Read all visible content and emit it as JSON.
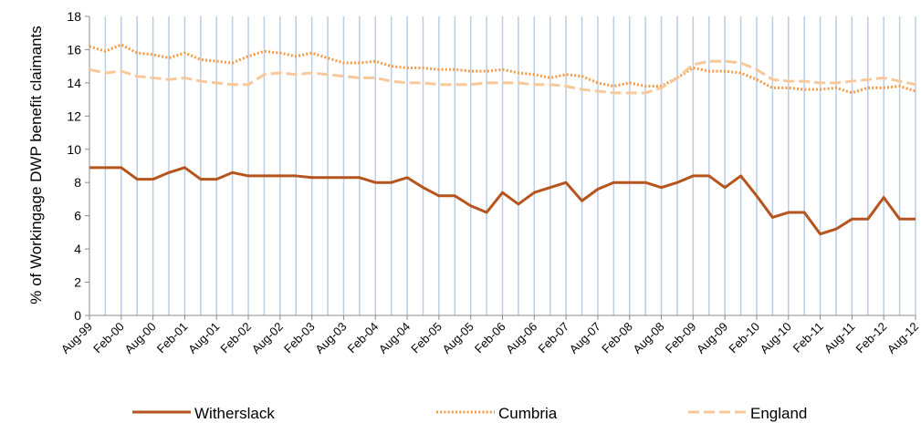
{
  "chart_data": {
    "type": "line",
    "title": "",
    "xlabel": "",
    "ylabel": "% of Workingage DWP benefit claimants",
    "ylim": [
      0,
      18
    ],
    "ytick_values": [
      0,
      2,
      4,
      6,
      8,
      10,
      12,
      14,
      16,
      18
    ],
    "grid": "vertical",
    "legend_position": "bottom",
    "x_tick_labels": [
      "Aug-99",
      "Feb-00",
      "Aug-00",
      "Feb-01",
      "Aug-01",
      "Feb-02",
      "Aug-02",
      "Feb-03",
      "Aug-03",
      "Feb-04",
      "Aug-04",
      "Feb-05",
      "Aug-05",
      "Feb-06",
      "Aug-06",
      "Feb-07",
      "Aug-07",
      "Feb-08",
      "Aug-08",
      "Feb-09",
      "Aug-09",
      "Feb-10",
      "Aug-10",
      "Feb-11",
      "Aug-11",
      "Feb-12",
      "Aug-12"
    ],
    "x_points_per_tick": 2,
    "n_points": 53,
    "series": [
      {
        "name": "Witherslack",
        "style": "solid",
        "color": "#b5541c",
        "values": [
          8.9,
          8.9,
          8.9,
          8.2,
          8.2,
          8.6,
          8.9,
          8.2,
          8.2,
          8.6,
          8.4,
          8.4,
          8.4,
          8.4,
          8.3,
          8.3,
          8.3,
          8.3,
          8.0,
          8.0,
          8.3,
          7.7,
          7.2,
          7.2,
          6.6,
          6.2,
          7.4,
          6.7,
          7.4,
          7.7,
          8.0,
          6.9,
          7.6,
          8.0,
          8.0,
          8.0,
          7.7,
          8.0,
          8.4,
          8.4,
          7.7,
          8.4,
          7.2,
          5.9,
          6.2,
          6.2,
          4.9,
          5.2,
          5.8,
          5.8,
          7.1,
          5.8,
          5.8
        ]
      },
      {
        "name": "Cumbria",
        "style": "dotted",
        "color": "#f39a45",
        "values": [
          16.2,
          15.9,
          16.3,
          15.8,
          15.7,
          15.5,
          15.8,
          15.4,
          15.3,
          15.2,
          15.6,
          15.9,
          15.8,
          15.6,
          15.8,
          15.5,
          15.2,
          15.2,
          15.3,
          15.0,
          14.9,
          14.9,
          14.8,
          14.8,
          14.7,
          14.7,
          14.8,
          14.6,
          14.5,
          14.3,
          14.5,
          14.4,
          14.0,
          13.8,
          14.0,
          13.8,
          13.8,
          14.3,
          14.9,
          14.7,
          14.7,
          14.6,
          14.2,
          13.7,
          13.7,
          13.6,
          13.6,
          13.7,
          13.4,
          13.7,
          13.7,
          13.8,
          13.5
        ]
      },
      {
        "name": "England",
        "style": "dashed",
        "color": "#f8c89a",
        "values": [
          14.8,
          14.6,
          14.7,
          14.4,
          14.3,
          14.2,
          14.3,
          14.1,
          14.0,
          13.9,
          13.9,
          14.5,
          14.6,
          14.5,
          14.6,
          14.5,
          14.4,
          14.3,
          14.3,
          14.1,
          14.0,
          14.0,
          13.9,
          13.9,
          13.9,
          14.0,
          14.0,
          14.0,
          13.9,
          13.9,
          13.8,
          13.6,
          13.5,
          13.4,
          13.4,
          13.4,
          13.7,
          14.3,
          15.1,
          15.3,
          15.3,
          15.2,
          14.8,
          14.2,
          14.1,
          14.1,
          14.0,
          14.0,
          14.1,
          14.2,
          14.3,
          14.1,
          13.9
        ]
      }
    ]
  }
}
